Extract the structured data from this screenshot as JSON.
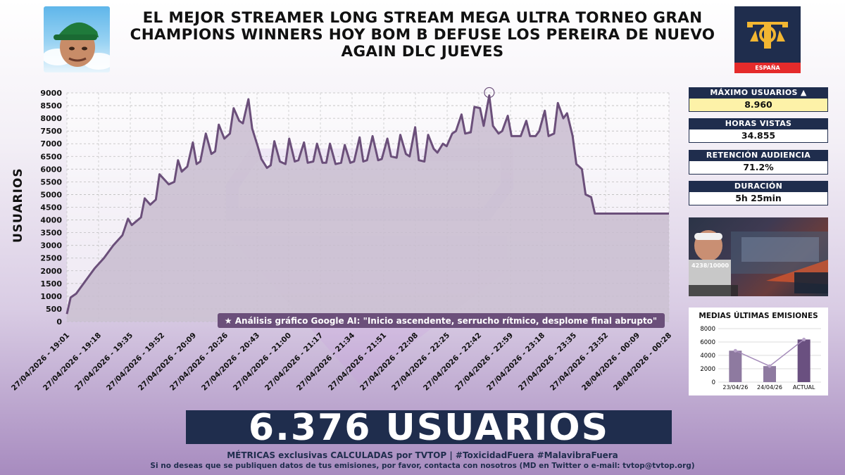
{
  "header": {
    "title": "EL MEJOR STREAMER LONG STREAM MEGA ULTRA TORNEO GRAN CHAMPIONS WINNERS HOY BOM B DEFUSE LOS PEREIRA DE NUEVO AGAIN DLC JUEVES",
    "logo_region": "ESPAÑA"
  },
  "stats": [
    {
      "label": "MÁXIMO USUARIOS ▲",
      "value": "8.960"
    },
    {
      "label": "HORAS VISTAS",
      "value": "34.855"
    },
    {
      "label": "RETENCIÓN AUDIENCIA",
      "value": "71.2%"
    },
    {
      "label": "DURACIÓN",
      "value": "5h 25min"
    }
  ],
  "thumbnail": {
    "overlay_text": "4238/10000"
  },
  "averages": {
    "title": "MEDIAS ÚLTIMAS EMISIONES",
    "categories": [
      "23/04/26",
      "24/04/26",
      "ACTUAL"
    ],
    "values": [
      4700,
      2400,
      6376
    ],
    "yticks": [
      "8000",
      "6000",
      "4000",
      "2000",
      "0"
    ]
  },
  "banner": "6.376 USUARIOS",
  "footer": {
    "line1": "MÉTRICAS exclusivas CALCULADAS por TVTOP | #ToxicidadFuera #MalavibraFuera",
    "line2": "Si no deseas que se publiquen datos de tus emisiones, por favor, contacta con nosotros (MD en Twitter o e-mail: tvtop@tvtop.org)"
  },
  "colors": {
    "navy": "#1f2d4d",
    "line": "#6b4f7a",
    "fill": "#cbbfd0",
    "highlight": "#fdf2a8",
    "accent": "#7a5c8e"
  },
  "chart_data": {
    "type": "area",
    "ylabel": "USUARIOS",
    "ylim": [
      0,
      9000
    ],
    "yticks": [
      0,
      500,
      1000,
      1500,
      2000,
      2500,
      3000,
      3500,
      4000,
      4500,
      5000,
      5500,
      6000,
      6500,
      7000,
      7500,
      8000,
      8500,
      9000
    ],
    "xlabels": [
      "27/04/2026 - 19:01",
      "27/04/2026 - 19:18",
      "27/04/2026 - 19:35",
      "27/04/2026 - 19:52",
      "27/04/2026 - 20:09",
      "27/04/2026 - 20:26",
      "27/04/2026 - 20:43",
      "27/04/2026 - 21:00",
      "27/04/2026 - 21:17",
      "27/04/2026 - 21:34",
      "27/04/2026 - 21:51",
      "27/04/2026 - 22:08",
      "27/04/2026 - 22:25",
      "27/04/2026 - 22:42",
      "27/04/2026 - 22:59",
      "27/04/2026 - 23:18",
      "27/04/2026 - 23:35",
      "27/04/2026 - 23:52",
      "28/04/2026 - 00:09",
      "28/04/2026 - 00:28"
    ],
    "x_minutes": [
      0,
      2,
      5,
      10,
      15,
      20,
      25,
      30,
      33,
      35,
      40,
      42,
      45,
      48,
      50,
      55,
      58,
      60,
      62,
      65,
      68,
      70,
      72,
      75,
      78,
      80,
      82,
      85,
      88,
      90,
      93,
      95,
      98,
      100,
      103,
      105,
      108,
      110,
      112,
      115,
      118,
      120,
      123,
      125,
      128,
      130,
      133,
      135,
      138,
      140,
      142,
      145,
      148,
      150,
      153,
      155,
      158,
      160,
      162,
      165,
      168,
      170,
      173,
      175,
      178,
      180,
      183,
      185,
      188,
      190,
      193,
      195,
      198,
      200,
      203,
      205,
      208,
      210,
      213,
      215,
      218,
      220,
      223,
      225,
      228,
      230,
      233,
      235,
      238,
      240,
      242,
      245,
      248,
      250,
      253,
      255,
      258,
      260,
      263,
      265,
      268,
      270,
      273,
      275,
      278,
      280,
      283,
      285,
      288,
      290,
      293,
      295,
      298,
      300,
      303,
      305,
      308,
      310,
      312,
      315,
      318,
      320,
      322,
      325
    ],
    "values": [
      300,
      950,
      1100,
      1600,
      2100,
      2500,
      3000,
      3400,
      4050,
      3800,
      4100,
      4850,
      4600,
      4800,
      5800,
      5400,
      5500,
      6350,
      5900,
      6100,
      7050,
      6200,
      6300,
      7400,
      6600,
      6700,
      7750,
      7200,
      7400,
      8400,
      7900,
      7800,
      8750,
      7600,
      6900,
      6400,
      6050,
      6150,
      7100,
      6300,
      6200,
      7200,
      6300,
      6350,
      7050,
      6250,
      6300,
      7000,
      6250,
      6250,
      7000,
      6200,
      6250,
      6950,
      6250,
      6300,
      7250,
      6300,
      6350,
      7300,
      6350,
      6400,
      7200,
      6500,
      6450,
      7350,
      6600,
      6500,
      7650,
      6350,
      6300,
      7350,
      6800,
      6650,
      7000,
      6900,
      7400,
      7500,
      8150,
      7400,
      7450,
      8450,
      8400,
      7700,
      8900,
      7700,
      7400,
      7500,
      8100,
      7300,
      7300,
      7300,
      7900,
      7300,
      7300,
      7500,
      8300,
      7300,
      7400,
      8600,
      8000,
      8200,
      7300,
      6200,
      6000,
      5000,
      4900,
      4250,
      4250,
      4250,
      4250,
      4250,
      4250,
      4250,
      4250,
      4250,
      4250,
      4250,
      4250,
      4250,
      4250,
      4250,
      4250,
      4250
    ],
    "peak": {
      "value": 8960
    },
    "annotation": "★ Análisis gráfico Google AI: \"Inicio ascendente, serrucho rítmico, desplome final abrupto\"",
    "grid": true
  }
}
